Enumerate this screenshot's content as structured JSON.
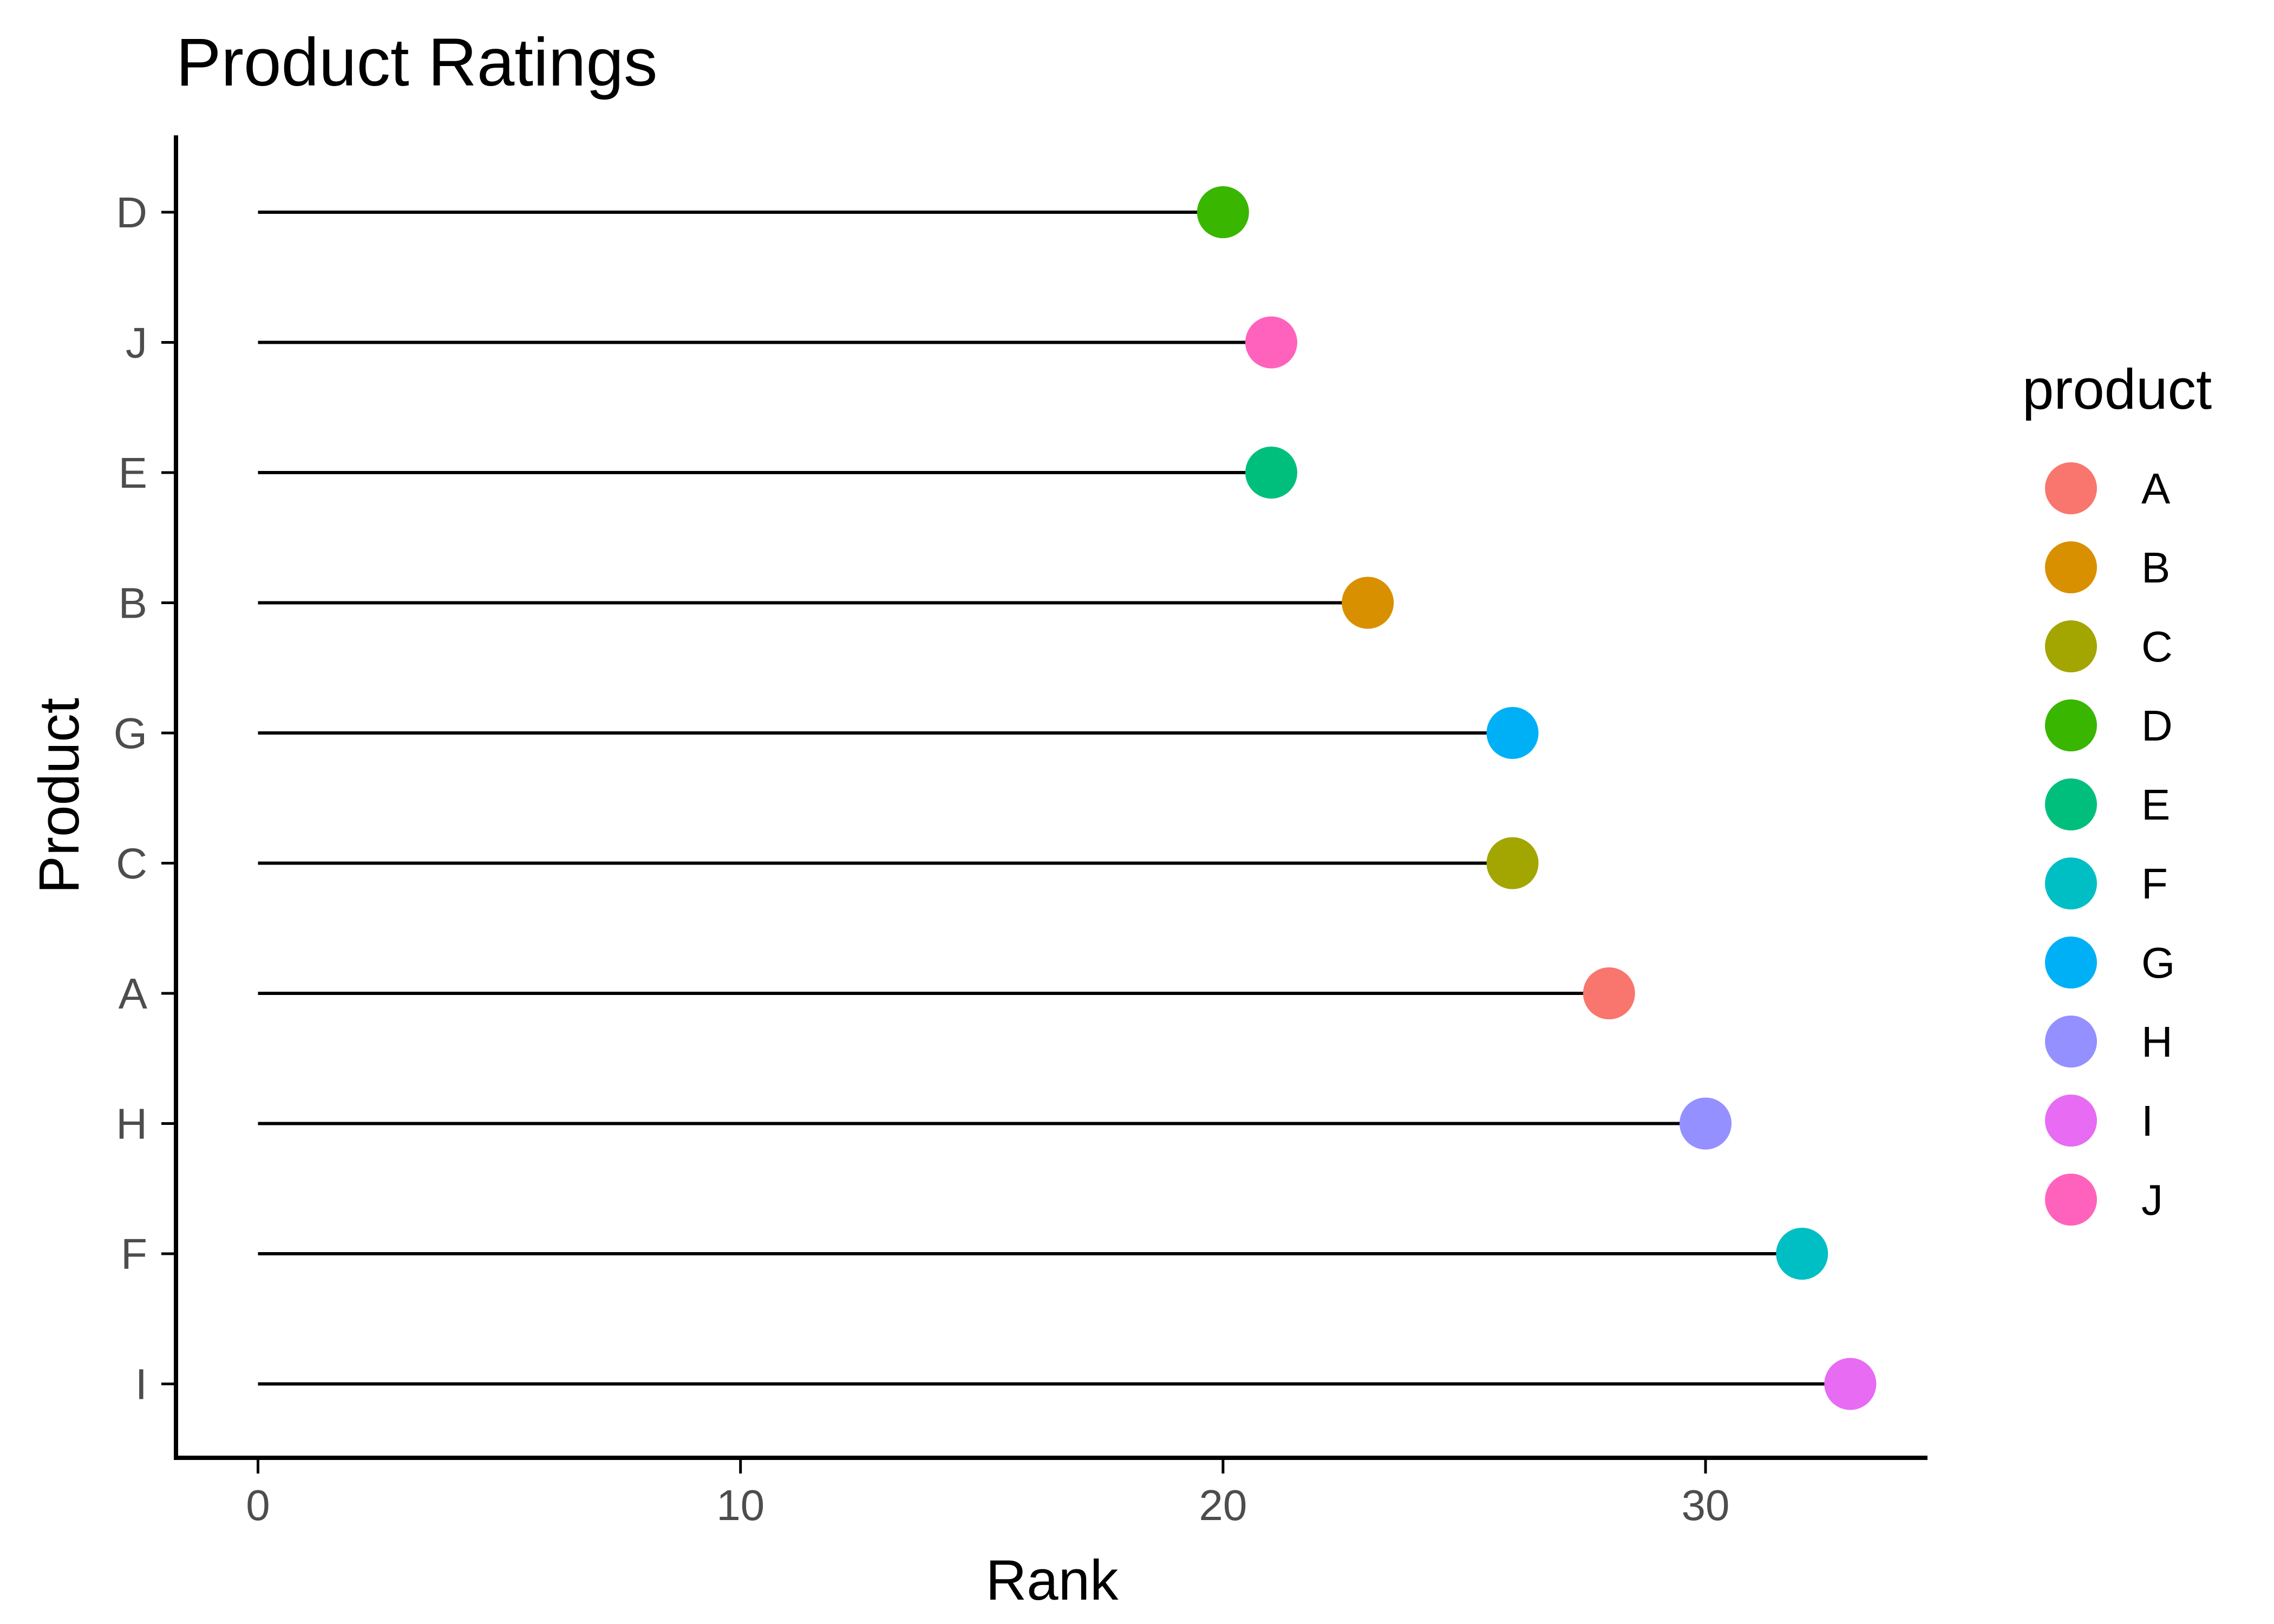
{
  "chart_data": {
    "type": "lollipop",
    "title": "Product Ratings",
    "xlabel": "Rank",
    "ylabel": "Product",
    "xlim": [
      -1.7,
      34.6
    ],
    "xticks": [
      0,
      10,
      20,
      30
    ],
    "grid": false,
    "legend_title": "product",
    "legend_placement": "right",
    "categories": [
      "D",
      "J",
      "E",
      "B",
      "G",
      "C",
      "A",
      "H",
      "F",
      "I"
    ],
    "values": [
      20,
      21,
      21,
      23,
      26,
      26,
      28,
      30,
      32,
      33
    ],
    "legend": [
      {
        "label": "A",
        "color": "#F8766D"
      },
      {
        "label": "B",
        "color": "#D89000"
      },
      {
        "label": "C",
        "color": "#A3A500"
      },
      {
        "label": "D",
        "color": "#39B600"
      },
      {
        "label": "E",
        "color": "#00BF7D"
      },
      {
        "label": "F",
        "color": "#00BFC4"
      },
      {
        "label": "G",
        "color": "#00B0F6"
      },
      {
        "label": "H",
        "color": "#9590FF"
      },
      {
        "label": "I",
        "color": "#E76BF3"
      },
      {
        "label": "J",
        "color": "#FF62BC"
      }
    ]
  }
}
